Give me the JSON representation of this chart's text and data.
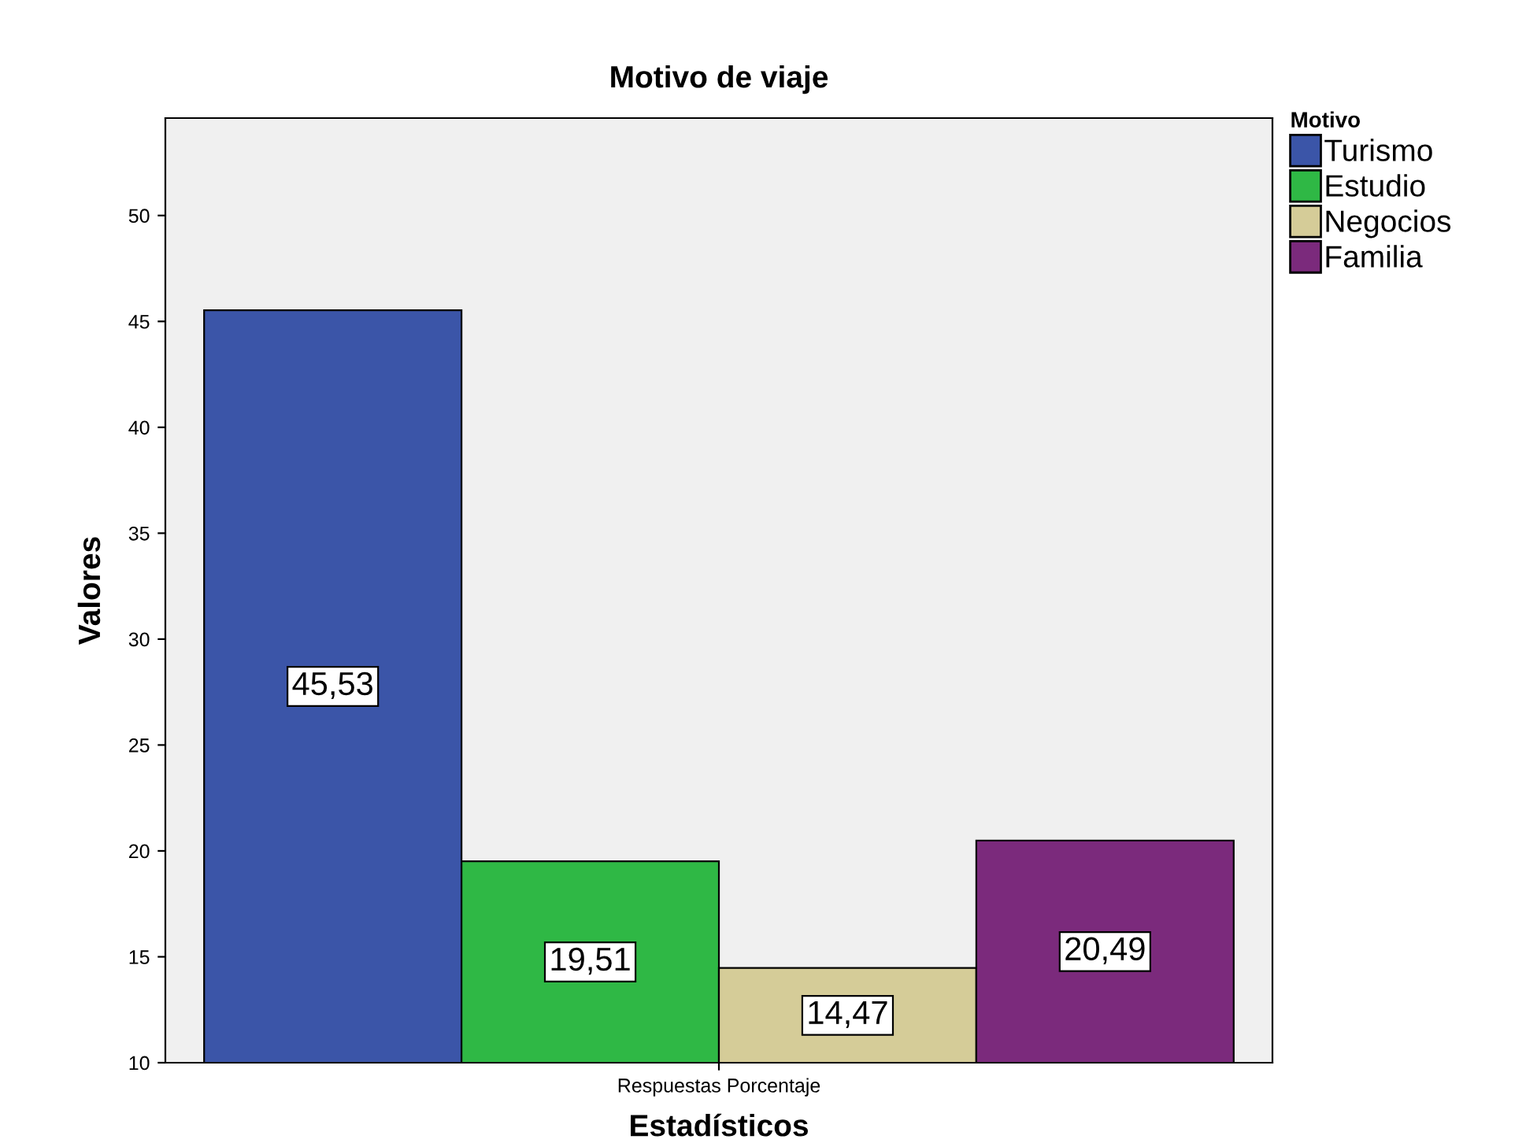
{
  "chart_data": {
    "type": "bar",
    "title": "Motivo de viaje",
    "xlabel": "Estadísticos",
    "ylabel": "Valores",
    "legend_title": "Motivo",
    "categories": [
      "Respuestas Porcentaje"
    ],
    "series": [
      {
        "name": "Turismo",
        "color": "#3b55a8",
        "values": [
          45.53
        ],
        "value_labels": [
          "45,53"
        ]
      },
      {
        "name": "Estudio",
        "color": "#2fb845",
        "values": [
          19.51
        ],
        "value_labels": [
          "19,51"
        ]
      },
      {
        "name": "Negocios",
        "color": "#d5cc98",
        "values": [
          14.47
        ],
        "value_labels": [
          "14,47"
        ]
      },
      {
        "name": "Familia",
        "color": "#7b2a7c",
        "values": [
          20.49
        ],
        "value_labels": [
          "20,49"
        ]
      }
    ],
    "ylim": [
      10,
      54.6
    ],
    "yticks": [
      10,
      15,
      20,
      25,
      30,
      35,
      40,
      45,
      50
    ],
    "grid": false,
    "legend": "right"
  }
}
